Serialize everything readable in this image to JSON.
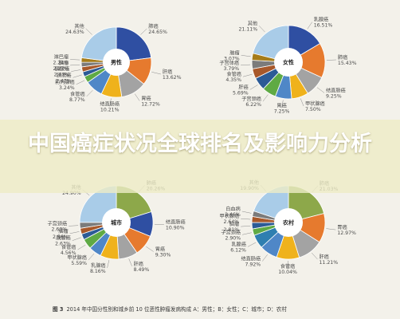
{
  "banner_title": "中国癌症状况全球排名及影响力分析",
  "caption_fig": "图 3",
  "caption_text": "2014 年中国分性别和城乡前 10 位恶性肿瘤发病构成  A：男性；B：女性；C：城市；D：农村",
  "chart_data": [
    {
      "type": "pie",
      "center_label": "男性",
      "slices": [
        {
          "name": "肺癌",
          "value": 24.65,
          "label": "24.65%",
          "color": "#2f4fa2"
        },
        {
          "name": "肝癌",
          "value": 13.62,
          "label": "13.62%",
          "color": "#e67a2e"
        },
        {
          "name": "胃癌",
          "value": 12.72,
          "label": "12.72%",
          "color": "#a3a3a3"
        },
        {
          "name": "结直肠癌",
          "value": 10.21,
          "label": "10.21%",
          "color": "#efb21c"
        },
        {
          "name": "食管癌",
          "value": 8.77,
          "label": "8.77%",
          "color": "#4f87c7"
        },
        {
          "name": "前列腺癌",
          "value": 3.24,
          "label": "3.24%",
          "color": "#5faa44"
        },
        {
          "name": "膀胱癌",
          "value": 2.47,
          "label": "2.47%",
          "color": "#2c5b96"
        },
        {
          "name": "胰腺癌",
          "value": 2.47,
          "label": "2.47%",
          "color": "#a8582a"
        },
        {
          "name": "脑瘤",
          "value": 2.27,
          "label": "2.27%",
          "color": "#7b7b7b"
        },
        {
          "name": "淋巴瘤",
          "value": 2.24,
          "label": "2.24%",
          "color": "#a67c19"
        },
        {
          "name": "其他",
          "value": 24.63,
          "label": "24.63%",
          "color": "#a9cce8"
        }
      ]
    },
    {
      "type": "pie",
      "center_label": "女性",
      "slices": [
        {
          "name": "乳腺癌",
          "value": 16.51,
          "label": "16.51%",
          "color": "#2f4fa2"
        },
        {
          "name": "肺癌",
          "value": 15.43,
          "label": "15.43%",
          "color": "#e67a2e"
        },
        {
          "name": "结直肠癌",
          "value": 9.25,
          "label": "9.25%",
          "color": "#a3a3a3"
        },
        {
          "name": "甲状腺癌",
          "value": 7.5,
          "label": "7.50%",
          "color": "#efb21c"
        },
        {
          "name": "胃癌",
          "value": 7.25,
          "label": "7.25%",
          "color": "#4f87c7"
        },
        {
          "name": "子宫颈癌",
          "value": 6.22,
          "label": "6.22%",
          "color": "#5faa44"
        },
        {
          "name": "肝癌",
          "value": 5.69,
          "label": "5.69%",
          "color": "#2c5b96"
        },
        {
          "name": "食管癌",
          "value": 4.35,
          "label": "4.35%",
          "color": "#a8582a"
        },
        {
          "name": "子宫体癌",
          "value": 3.79,
          "label": "3.79%",
          "color": "#7b7b7b"
        },
        {
          "name": "脑瘤",
          "value": 3.07,
          "label": "3.07%",
          "color": "#a67c19"
        },
        {
          "name": "其他",
          "value": 21.11,
          "label": "21.11%",
          "color": "#a9cce8"
        }
      ]
    },
    {
      "type": "pie",
      "center_label": "城市",
      "slices": [
        {
          "name": "肺癌",
          "value": 20.26,
          "label": "20.26%",
          "color": "#8da84a"
        },
        {
          "name": "结直肠癌",
          "value": 10.9,
          "label": "10.90%",
          "color": "#2f4fa2"
        },
        {
          "name": "胃癌",
          "value": 9.3,
          "label": "9.30%",
          "color": "#e67a2e"
        },
        {
          "name": "肝癌",
          "value": 8.49,
          "label": "8.49%",
          "color": "#a3a3a3"
        },
        {
          "name": "乳腺癌",
          "value": 8.16,
          "label": "8.16%",
          "color": "#efb21c"
        },
        {
          "name": "甲状腺癌",
          "value": 5.59,
          "label": "5.59%",
          "color": "#4f87c7"
        },
        {
          "name": "食管癌",
          "value": 4.56,
          "label": "4.56%",
          "color": "#5faa44"
        },
        {
          "name": "胰腺癌",
          "value": 2.63,
          "label": "2.63%",
          "color": "#2c5b96"
        },
        {
          "name": "脑瘤",
          "value": 2.56,
          "label": "2.56%",
          "color": "#a8582a"
        },
        {
          "name": "子宫颈癌",
          "value": 2.63,
          "label": "2.63%",
          "color": "#7b7b7b"
        },
        {
          "name": "其他",
          "value": 24.9,
          "label": "24.90%",
          "color": "#a9cce8"
        }
      ]
    },
    {
      "type": "pie",
      "center_label": "农村",
      "slices": [
        {
          "name": "肺癌",
          "value": 21.03,
          "label": "21.03%",
          "color": "#8da84a"
        },
        {
          "name": "胃癌",
          "value": 12.97,
          "label": "12.97%",
          "color": "#e67a2e"
        },
        {
          "name": "肝癌",
          "value": 11.21,
          "label": "11.21%",
          "color": "#a3a3a3"
        },
        {
          "name": "食管癌",
          "value": 10.04,
          "label": "10.04%",
          "color": "#efb21c"
        },
        {
          "name": "结直肠癌",
          "value": 7.92,
          "label": "7.92%",
          "color": "#4f87c7"
        },
        {
          "name": "乳腺癌",
          "value": 6.12,
          "label": "6.12%",
          "color": "#2f7fb0"
        },
        {
          "name": "子宫颈癌",
          "value": 2.9,
          "label": "2.90%",
          "color": "#5faa44"
        },
        {
          "name": "脑瘤",
          "value": 2.81,
          "label": "2.81%",
          "color": "#2c5b96"
        },
        {
          "name": "甲状腺癌",
          "value": 2.64,
          "label": "2.64%",
          "color": "#a8582a"
        },
        {
          "name": "白血病",
          "value": 2.46,
          "label": "2.46%",
          "color": "#7b7b7b"
        },
        {
          "name": "其他",
          "value": 19.9,
          "label": "19.90%",
          "color": "#a9cce8"
        }
      ]
    }
  ]
}
